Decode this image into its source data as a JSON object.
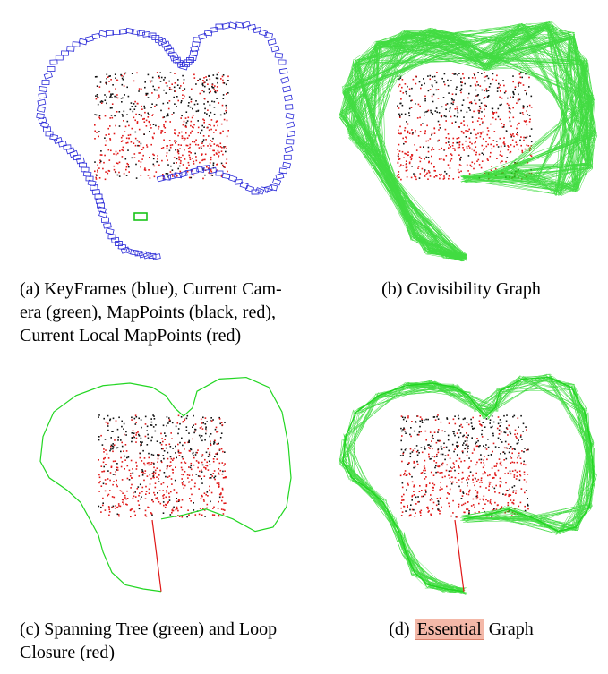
{
  "panels": [
    {
      "id": "a",
      "caption_lines": [
        "(a) KeyFrames (blue), Current Cam-",
        "era (green), MapPoints (black, red),",
        "Current Local MapPoints (red)"
      ]
    },
    {
      "id": "b",
      "caption": "(b) Covisibility Graph"
    },
    {
      "id": "c",
      "caption_lines": [
        "(c) Spanning Tree (green) and Loop",
        "Closure (red)"
      ]
    },
    {
      "id": "d",
      "caption_prefix": "(d) ",
      "caption_highlight": "Essential",
      "caption_suffix": " Graph"
    }
  ],
  "colors": {
    "keyframes": "#2a2ad8",
    "camera": "#19c419",
    "graph": "#22d622",
    "points_black": "#111111",
    "points_red": "#e01818",
    "loop": "#e01818",
    "highlight": "#f4b8a8"
  }
}
